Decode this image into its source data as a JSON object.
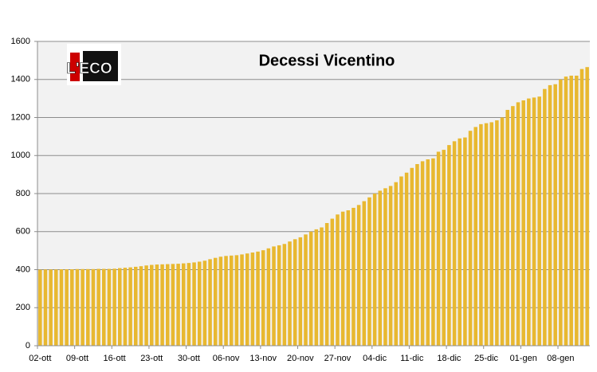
{
  "chart_data": {
    "type": "bar",
    "title": "Decessi Vicentino",
    "logo": "L'ECO",
    "categories": [
      "02-ott",
      null,
      null,
      null,
      null,
      null,
      null,
      "09-ott",
      null,
      null,
      null,
      null,
      null,
      null,
      "16-ott",
      null,
      null,
      null,
      null,
      null,
      null,
      "23-ott",
      null,
      null,
      null,
      null,
      null,
      null,
      "30-ott",
      null,
      null,
      null,
      null,
      null,
      null,
      "06-nov",
      null,
      null,
      null,
      null,
      null,
      null,
      "13-nov",
      null,
      null,
      null,
      null,
      null,
      null,
      "20-nov",
      null,
      null,
      null,
      null,
      null,
      null,
      "27-nov",
      null,
      null,
      null,
      null,
      null,
      null,
      "04-dic",
      null,
      null,
      null,
      null,
      null,
      null,
      "11-dic",
      null,
      null,
      null,
      null,
      null,
      null,
      "18-dic",
      null,
      null,
      null,
      null,
      null,
      null,
      "25-dic",
      null,
      null,
      null,
      null,
      null,
      null,
      "01-gen",
      null,
      null,
      null,
      null,
      null,
      null,
      "08-gen",
      null,
      null,
      null,
      null,
      null
    ],
    "values": [
      400,
      401,
      401,
      401,
      402,
      402,
      402,
      403,
      403,
      403,
      403,
      404,
      404,
      404,
      405,
      408,
      410,
      412,
      415,
      418,
      422,
      425,
      427,
      428,
      429,
      430,
      431,
      433,
      435,
      438,
      442,
      447,
      455,
      462,
      468,
      472,
      474,
      476,
      480,
      485,
      490,
      495,
      502,
      512,
      522,
      528,
      535,
      548,
      560,
      570,
      585,
      600,
      612,
      622,
      645,
      668,
      690,
      705,
      712,
      725,
      740,
      760,
      780,
      800,
      815,
      828,
      840,
      860,
      890,
      910,
      935,
      955,
      970,
      980,
      985,
      1020,
      1030,
      1055,
      1075,
      1090,
      1095,
      1130,
      1150,
      1165,
      1170,
      1175,
      1185,
      1200,
      1240,
      1260,
      1280,
      1290,
      1300,
      1305,
      1310,
      1350,
      1370,
      1375,
      1400,
      1415,
      1420,
      1420,
      1455,
      1465
    ],
    "color": "#e8b830",
    "ylim": [
      0,
      1600
    ],
    "yticks": [
      0,
      200,
      400,
      600,
      800,
      1000,
      1200,
      1400,
      1600
    ],
    "grid": true
  }
}
